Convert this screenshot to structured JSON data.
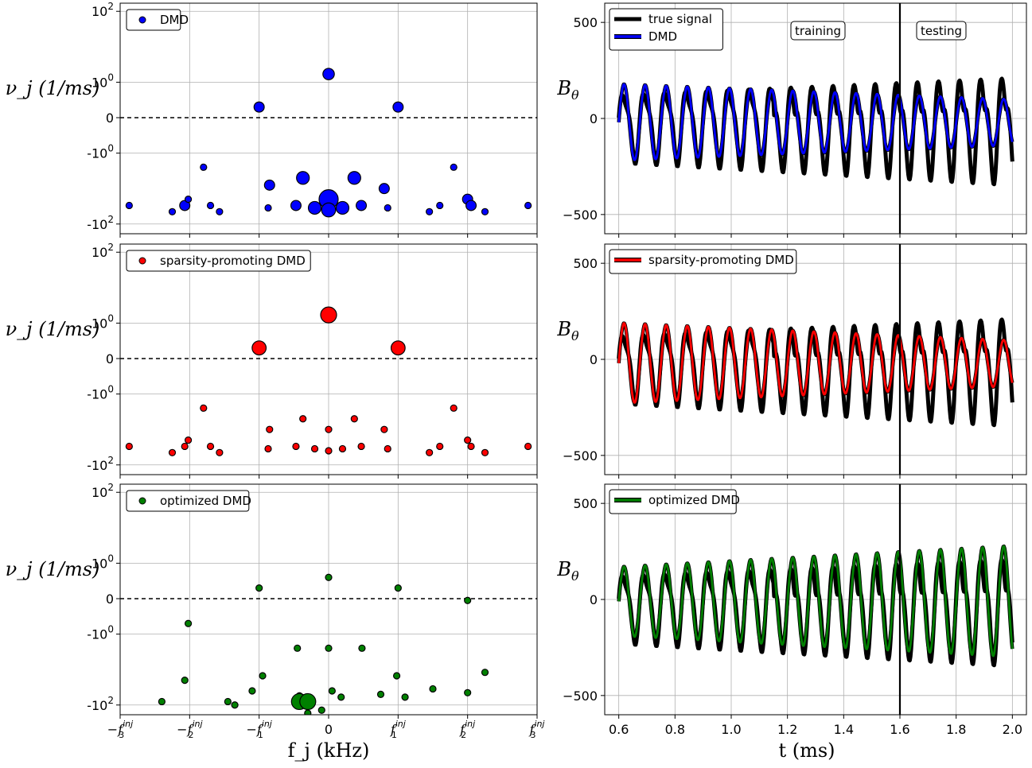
{
  "colors": {
    "dmd": "#0000ff",
    "sparsity": "#ff0000",
    "optimized": "#008000",
    "signal": "#000000"
  },
  "shared": {
    "freq_xlabel": "f_j (kHz)",
    "freq_ylabel": "ν_j (1/ms)",
    "time_xlabel": "t (ms)",
    "time_ylabel": "B_θ",
    "freq_xticks": [
      "-f3inj",
      "-f2inj",
      "-f1inj",
      "0",
      "f1inj",
      "f2inj",
      "f3inj"
    ],
    "freq_yticks": [
      "10^2",
      "10^0",
      "0",
      "-10^0",
      "-10^2"
    ],
    "time_xticks": [
      "0.6",
      "0.8",
      "1.0",
      "1.2",
      "1.4",
      "1.6",
      "1.8",
      "2.0"
    ],
    "time_yticks": [
      "500",
      "0",
      "−500"
    ],
    "annotations": {
      "training": "training",
      "testing": "testing"
    },
    "split_time": 1.6
  },
  "chart_data": [
    {
      "type": "scatter",
      "panel": "frequency",
      "legend": "DMD",
      "color_key": "dmd",
      "x_unit": "f_inj harmonics",
      "xlim": [
        -3,
        3
      ],
      "y_scale": "symlog",
      "ylim": [
        -200,
        200
      ],
      "points": [
        {
          "x": -2.87,
          "y": -30,
          "s": 1
        },
        {
          "x": -2.25,
          "y": -45,
          "s": 1
        },
        {
          "x": -2.07,
          "y": -30,
          "s": 1.6
        },
        {
          "x": -2.02,
          "y": -20,
          "s": 1
        },
        {
          "x": -1.8,
          "y": -2.5,
          "s": 1
        },
        {
          "x": -1.7,
          "y": -30,
          "s": 1
        },
        {
          "x": -1.57,
          "y": -45,
          "s": 1
        },
        {
          "x": -1.0,
          "y": 0.3,
          "s": 1.6
        },
        {
          "x": -0.85,
          "y": -8,
          "s": 1.6
        },
        {
          "x": -0.87,
          "y": -35,
          "s": 1
        },
        {
          "x": -0.47,
          "y": -30,
          "s": 1.6
        },
        {
          "x": -0.37,
          "y": -5,
          "s": 2
        },
        {
          "x": -0.2,
          "y": -35,
          "s": 2
        },
        {
          "x": 0.0,
          "y": -20,
          "s": 3
        },
        {
          "x": 0.0,
          "y": -40,
          "s": 2.2
        },
        {
          "x": 0.0,
          "y": 1.7,
          "s": 1.8
        },
        {
          "x": 0.2,
          "y": -35,
          "s": 2
        },
        {
          "x": 0.37,
          "y": -5,
          "s": 2
        },
        {
          "x": 0.47,
          "y": -30,
          "s": 1.6
        },
        {
          "x": 0.8,
          "y": -10,
          "s": 1.6
        },
        {
          "x": 0.85,
          "y": -35,
          "s": 1
        },
        {
          "x": 1.0,
          "y": 0.3,
          "s": 1.6
        },
        {
          "x": 1.45,
          "y": -45,
          "s": 1
        },
        {
          "x": 1.6,
          "y": -30,
          "s": 1
        },
        {
          "x": 1.8,
          "y": -2.5,
          "s": 1
        },
        {
          "x": 2.0,
          "y": -20,
          "s": 1.6
        },
        {
          "x": 2.05,
          "y": -30,
          "s": 1.6
        },
        {
          "x": 2.25,
          "y": -45,
          "s": 1
        },
        {
          "x": 2.87,
          "y": -30,
          "s": 1
        }
      ]
    },
    {
      "type": "line",
      "panel": "time",
      "series": [
        {
          "name": "true signal",
          "color_key": "signal"
        },
        {
          "name": "DMD",
          "color_key": "dmd"
        }
      ],
      "xlim": [
        0.55,
        2.05
      ],
      "ylim": [
        -600,
        600
      ],
      "signal_model": {
        "frequency_per_ms": 13.33,
        "true_amplitude_start": 190,
        "true_amplitude_end": 300,
        "fit_amplitude_start": 200,
        "fit_amplitude_end": 120,
        "fit_offset": -40,
        "true_offset": -30
      }
    },
    {
      "type": "scatter",
      "panel": "frequency",
      "legend": "sparsity-promoting DMD",
      "color_key": "sparsity",
      "x_unit": "f_inj harmonics",
      "xlim": [
        -3,
        3
      ],
      "y_scale": "symlog",
      "ylim": [
        -200,
        200
      ],
      "points": [
        {
          "x": -2.87,
          "y": -30,
          "s": 1
        },
        {
          "x": -2.25,
          "y": -45,
          "s": 1
        },
        {
          "x": -2.07,
          "y": -30,
          "s": 1
        },
        {
          "x": -2.02,
          "y": -20,
          "s": 1
        },
        {
          "x": -1.8,
          "y": -2.5,
          "s": 1
        },
        {
          "x": -1.7,
          "y": -30,
          "s": 1
        },
        {
          "x": -1.57,
          "y": -45,
          "s": 1
        },
        {
          "x": -1.0,
          "y": 0.3,
          "s": 2.2
        },
        {
          "x": -0.85,
          "y": -10,
          "s": 1
        },
        {
          "x": -0.87,
          "y": -35,
          "s": 1
        },
        {
          "x": -0.47,
          "y": -30,
          "s": 1
        },
        {
          "x": -0.37,
          "y": -5,
          "s": 1
        },
        {
          "x": -0.2,
          "y": -35,
          "s": 1
        },
        {
          "x": 0.0,
          "y": -10,
          "s": 1
        },
        {
          "x": 0.0,
          "y": -40,
          "s": 1
        },
        {
          "x": 0.0,
          "y": 1.7,
          "s": 2.5
        },
        {
          "x": 0.2,
          "y": -35,
          "s": 1
        },
        {
          "x": 0.37,
          "y": -5,
          "s": 1
        },
        {
          "x": 0.47,
          "y": -30,
          "s": 1
        },
        {
          "x": 0.8,
          "y": -10,
          "s": 1
        },
        {
          "x": 0.85,
          "y": -35,
          "s": 1
        },
        {
          "x": 1.0,
          "y": 0.3,
          "s": 2.2
        },
        {
          "x": 1.45,
          "y": -45,
          "s": 1
        },
        {
          "x": 1.6,
          "y": -30,
          "s": 1
        },
        {
          "x": 1.8,
          "y": -2.5,
          "s": 1
        },
        {
          "x": 2.0,
          "y": -20,
          "s": 1
        },
        {
          "x": 2.05,
          "y": -30,
          "s": 1
        },
        {
          "x": 2.25,
          "y": -45,
          "s": 1
        },
        {
          "x": 2.87,
          "y": -30,
          "s": 1
        }
      ]
    },
    {
      "type": "line",
      "panel": "time",
      "series": [
        {
          "name": "sparsity-promoting DMD",
          "color_key": "sparsity"
        }
      ],
      "xlim": [
        0.55,
        2.05
      ],
      "ylim": [
        -600,
        600
      ],
      "signal_model": {
        "frequency_per_ms": 13.33,
        "true_amplitude_start": 190,
        "true_amplitude_end": 300,
        "fit_amplitude_start": 210,
        "fit_amplitude_end": 120,
        "fit_offset": -40,
        "true_offset": -30
      }
    },
    {
      "type": "scatter",
      "panel": "frequency",
      "legend": "optimized DMD",
      "color_key": "optimized",
      "x_unit": "f_inj harmonics",
      "xlim": [
        -3,
        3
      ],
      "y_scale": "symlog",
      "ylim": [
        -200,
        200
      ],
      "points": [
        {
          "x": -2.4,
          "y": -80,
          "s": 1
        },
        {
          "x": -2.07,
          "y": -20,
          "s": 1
        },
        {
          "x": -2.02,
          "y": -0.7,
          "s": 1
        },
        {
          "x": -1.45,
          "y": -80,
          "s": 1
        },
        {
          "x": -1.35,
          "y": -100,
          "s": 1
        },
        {
          "x": -1.1,
          "y": -40,
          "s": 1
        },
        {
          "x": -1.0,
          "y": 0.3,
          "s": 1
        },
        {
          "x": -0.95,
          "y": -15,
          "s": 1
        },
        {
          "x": -0.45,
          "y": -2.5,
          "s": 1
        },
        {
          "x": -0.42,
          "y": -55,
          "s": 1
        },
        {
          "x": -0.42,
          "y": -80,
          "s": 2.5
        },
        {
          "x": -0.3,
          "y": -80,
          "s": 2.5
        },
        {
          "x": -0.3,
          "y": -170,
          "s": 1
        },
        {
          "x": -0.1,
          "y": -140,
          "s": 1
        },
        {
          "x": 0.0,
          "y": 0.6,
          "s": 1
        },
        {
          "x": 0.0,
          "y": -2.5,
          "s": 1
        },
        {
          "x": 0.05,
          "y": -40,
          "s": 1
        },
        {
          "x": 0.18,
          "y": -60,
          "s": 1
        },
        {
          "x": 0.48,
          "y": -2.5,
          "s": 1
        },
        {
          "x": 0.75,
          "y": -50,
          "s": 1
        },
        {
          "x": 1.0,
          "y": 0.3,
          "s": 1
        },
        {
          "x": 0.98,
          "y": -15,
          "s": 1
        },
        {
          "x": 1.1,
          "y": -60,
          "s": 1
        },
        {
          "x": 1.5,
          "y": -35,
          "s": 1
        },
        {
          "x": 2.0,
          "y": -0.05,
          "s": 1
        },
        {
          "x": 2.0,
          "y": -45,
          "s": 1
        },
        {
          "x": 2.25,
          "y": -12,
          "s": 1
        }
      ]
    },
    {
      "type": "line",
      "panel": "time",
      "series": [
        {
          "name": "optimized DMD",
          "color_key": "optimized"
        }
      ],
      "xlim": [
        0.55,
        2.05
      ],
      "ylim": [
        -600,
        600
      ],
      "signal_model": {
        "frequency_per_ms": 13.33,
        "true_amplitude_start": 190,
        "true_amplitude_end": 300,
        "fit_amplitude_start": 180,
        "fit_amplitude_end": 290,
        "fit_offset": -30,
        "true_offset": -30
      }
    }
  ]
}
